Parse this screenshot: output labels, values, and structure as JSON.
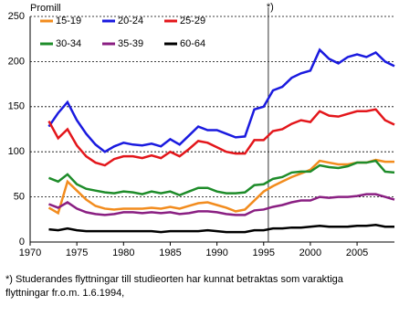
{
  "chart_data": {
    "type": "line",
    "y_axis_label": "Promill",
    "annotation": "*)",
    "annotation_x": 1995.5,
    "footnote": [
      "*) Studerandes flyttningar till studieorten har kunnat betraktas som varaktiga",
      "flyttningar fr.o.m. 1.6.1994,"
    ],
    "x": [
      1972,
      1973,
      1974,
      1975,
      1976,
      1977,
      1978,
      1979,
      1980,
      1981,
      1982,
      1983,
      1984,
      1985,
      1986,
      1987,
      1988,
      1989,
      1990,
      1991,
      1992,
      1993,
      1994,
      1995,
      1996,
      1997,
      1998,
      1999,
      2000,
      2001,
      2002,
      2003,
      2004,
      2005,
      2006,
      2007,
      2008,
      2009
    ],
    "xlim": [
      1970,
      2009
    ],
    "xticks": [
      1970,
      1975,
      1980,
      1985,
      1990,
      1995,
      2000,
      2005
    ],
    "ylim": [
      0,
      250
    ],
    "yticks": [
      0,
      50,
      100,
      150,
      200,
      250
    ],
    "grid": true,
    "series": [
      {
        "name": "15-19",
        "color": "#f28c1e",
        "values": [
          38,
          32,
          67,
          57,
          47,
          40,
          37,
          36,
          37,
          37,
          37,
          38,
          37,
          39,
          37,
          40,
          43,
          44,
          41,
          38,
          34,
          36,
          46,
          56,
          62,
          67,
          72,
          76,
          80,
          90,
          88,
          86,
          86,
          88,
          88,
          91,
          89,
          89
        ]
      },
      {
        "name": "20-24",
        "color": "#1a1adf",
        "values": [
          128,
          143,
          155,
          135,
          120,
          108,
          100,
          106,
          110,
          108,
          107,
          109,
          106,
          114,
          108,
          118,
          128,
          124,
          124,
          120,
          116,
          117,
          147,
          150,
          168,
          172,
          182,
          187,
          190,
          213,
          203,
          198,
          205,
          208,
          205,
          210,
          200,
          195
        ]
      },
      {
        "name": "25-29",
        "color": "#e3161b",
        "values": [
          134,
          115,
          125,
          107,
          95,
          88,
          85,
          92,
          95,
          95,
          93,
          96,
          93,
          100,
          95,
          103,
          112,
          110,
          105,
          100,
          98,
          98,
          113,
          113,
          123,
          125,
          131,
          135,
          133,
          145,
          140,
          139,
          142,
          145,
          145,
          147,
          135,
          130
        ]
      },
      {
        "name": "30-34",
        "color": "#1e8c2a",
        "values": [
          71,
          67,
          75,
          64,
          59,
          57,
          55,
          54,
          56,
          55,
          53,
          56,
          54,
          56,
          52,
          56,
          60,
          60,
          56,
          54,
          54,
          55,
          63,
          64,
          70,
          72,
          77,
          78,
          78,
          85,
          83,
          82,
          84,
          88,
          88,
          90,
          78,
          77
        ]
      },
      {
        "name": "35-39",
        "color": "#8a1f82",
        "values": [
          42,
          38,
          44,
          37,
          33,
          31,
          30,
          31,
          33,
          33,
          32,
          33,
          32,
          33,
          31,
          32,
          34,
          34,
          33,
          31,
          30,
          30,
          35,
          36,
          39,
          41,
          44,
          46,
          46,
          50,
          49,
          50,
          50,
          51,
          53,
          53,
          50,
          47
        ]
      },
      {
        "name": "60-64",
        "color": "#000000",
        "values": [
          14,
          13,
          15,
          13,
          12,
          12,
          12,
          12,
          12,
          12,
          12,
          12,
          11,
          12,
          12,
          12,
          12,
          13,
          12,
          11,
          11,
          11,
          13,
          13,
          15,
          15,
          16,
          16,
          17,
          18,
          17,
          17,
          17,
          18,
          18,
          19,
          17,
          17
        ]
      }
    ]
  }
}
